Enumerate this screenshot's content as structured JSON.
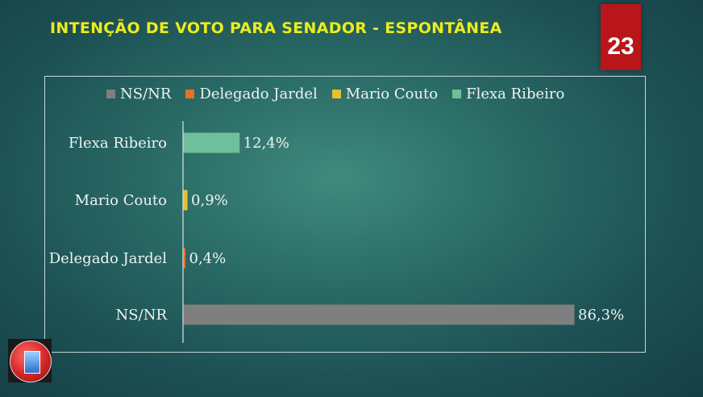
{
  "header": {
    "title": "INTENÇÃO DE VOTO PARA SENADOR - ESPONTÂNEA",
    "page_number": "23"
  },
  "colors": {
    "NS/NR": "#7f7f7f",
    "Delegado Jardel": "#e8702a",
    "Mario Couto": "#e6c12e",
    "Flexa Ribeiro": "#6fbf9c"
  },
  "chart_data": {
    "type": "bar",
    "orientation": "horizontal",
    "title": "INTENÇÃO DE VOTO PARA SENADOR - ESPONTÂNEA",
    "categories": [
      "Flexa Ribeiro",
      "Mario Couto",
      "Delegado Jardel",
      "NS/NR"
    ],
    "values": [
      12.4,
      0.9,
      0.4,
      86.3
    ],
    "value_labels": [
      "12,4%",
      "0,9%",
      "0,4%",
      "86,3%"
    ],
    "legend": [
      "NS/NR",
      "Delegado Jardel",
      "Mario Couto",
      "Flexa Ribeiro"
    ],
    "legend_position": "top",
    "xlim": [
      0,
      86.3
    ],
    "grid": false
  },
  "logo": {
    "icon": "book-logo-icon"
  }
}
